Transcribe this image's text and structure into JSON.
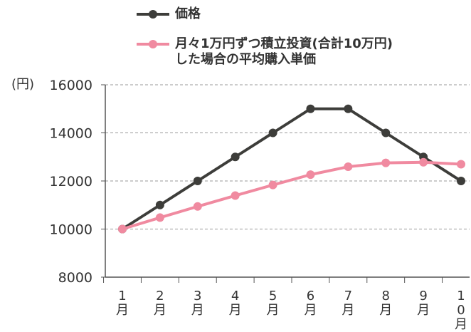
{
  "chart_data": {
    "type": "line",
    "y_label": "(円)",
    "categories": [
      "1月",
      "2月",
      "3月",
      "4月",
      "5月",
      "6月",
      "7月",
      "8月",
      "9月",
      "10月"
    ],
    "series": [
      {
        "name": "価格",
        "color": "#3d3d3a",
        "values": [
          10000,
          11000,
          12000,
          13000,
          14000,
          15000,
          15000,
          14000,
          13000,
          12000
        ]
      },
      {
        "name": "月々1万円ずつ積立投資(合計10万円)\nした場合の平均購入単価",
        "color": "#f08aa0",
        "values": [
          10000,
          10476,
          10939,
          11391,
          11832,
          12263,
          12592,
          12752,
          12779,
          12697
        ]
      }
    ],
    "ylim": [
      8000,
      16000
    ],
    "yticks": [
      8000,
      10000,
      12000,
      14000,
      16000
    ],
    "grid": true,
    "legend": "top"
  }
}
